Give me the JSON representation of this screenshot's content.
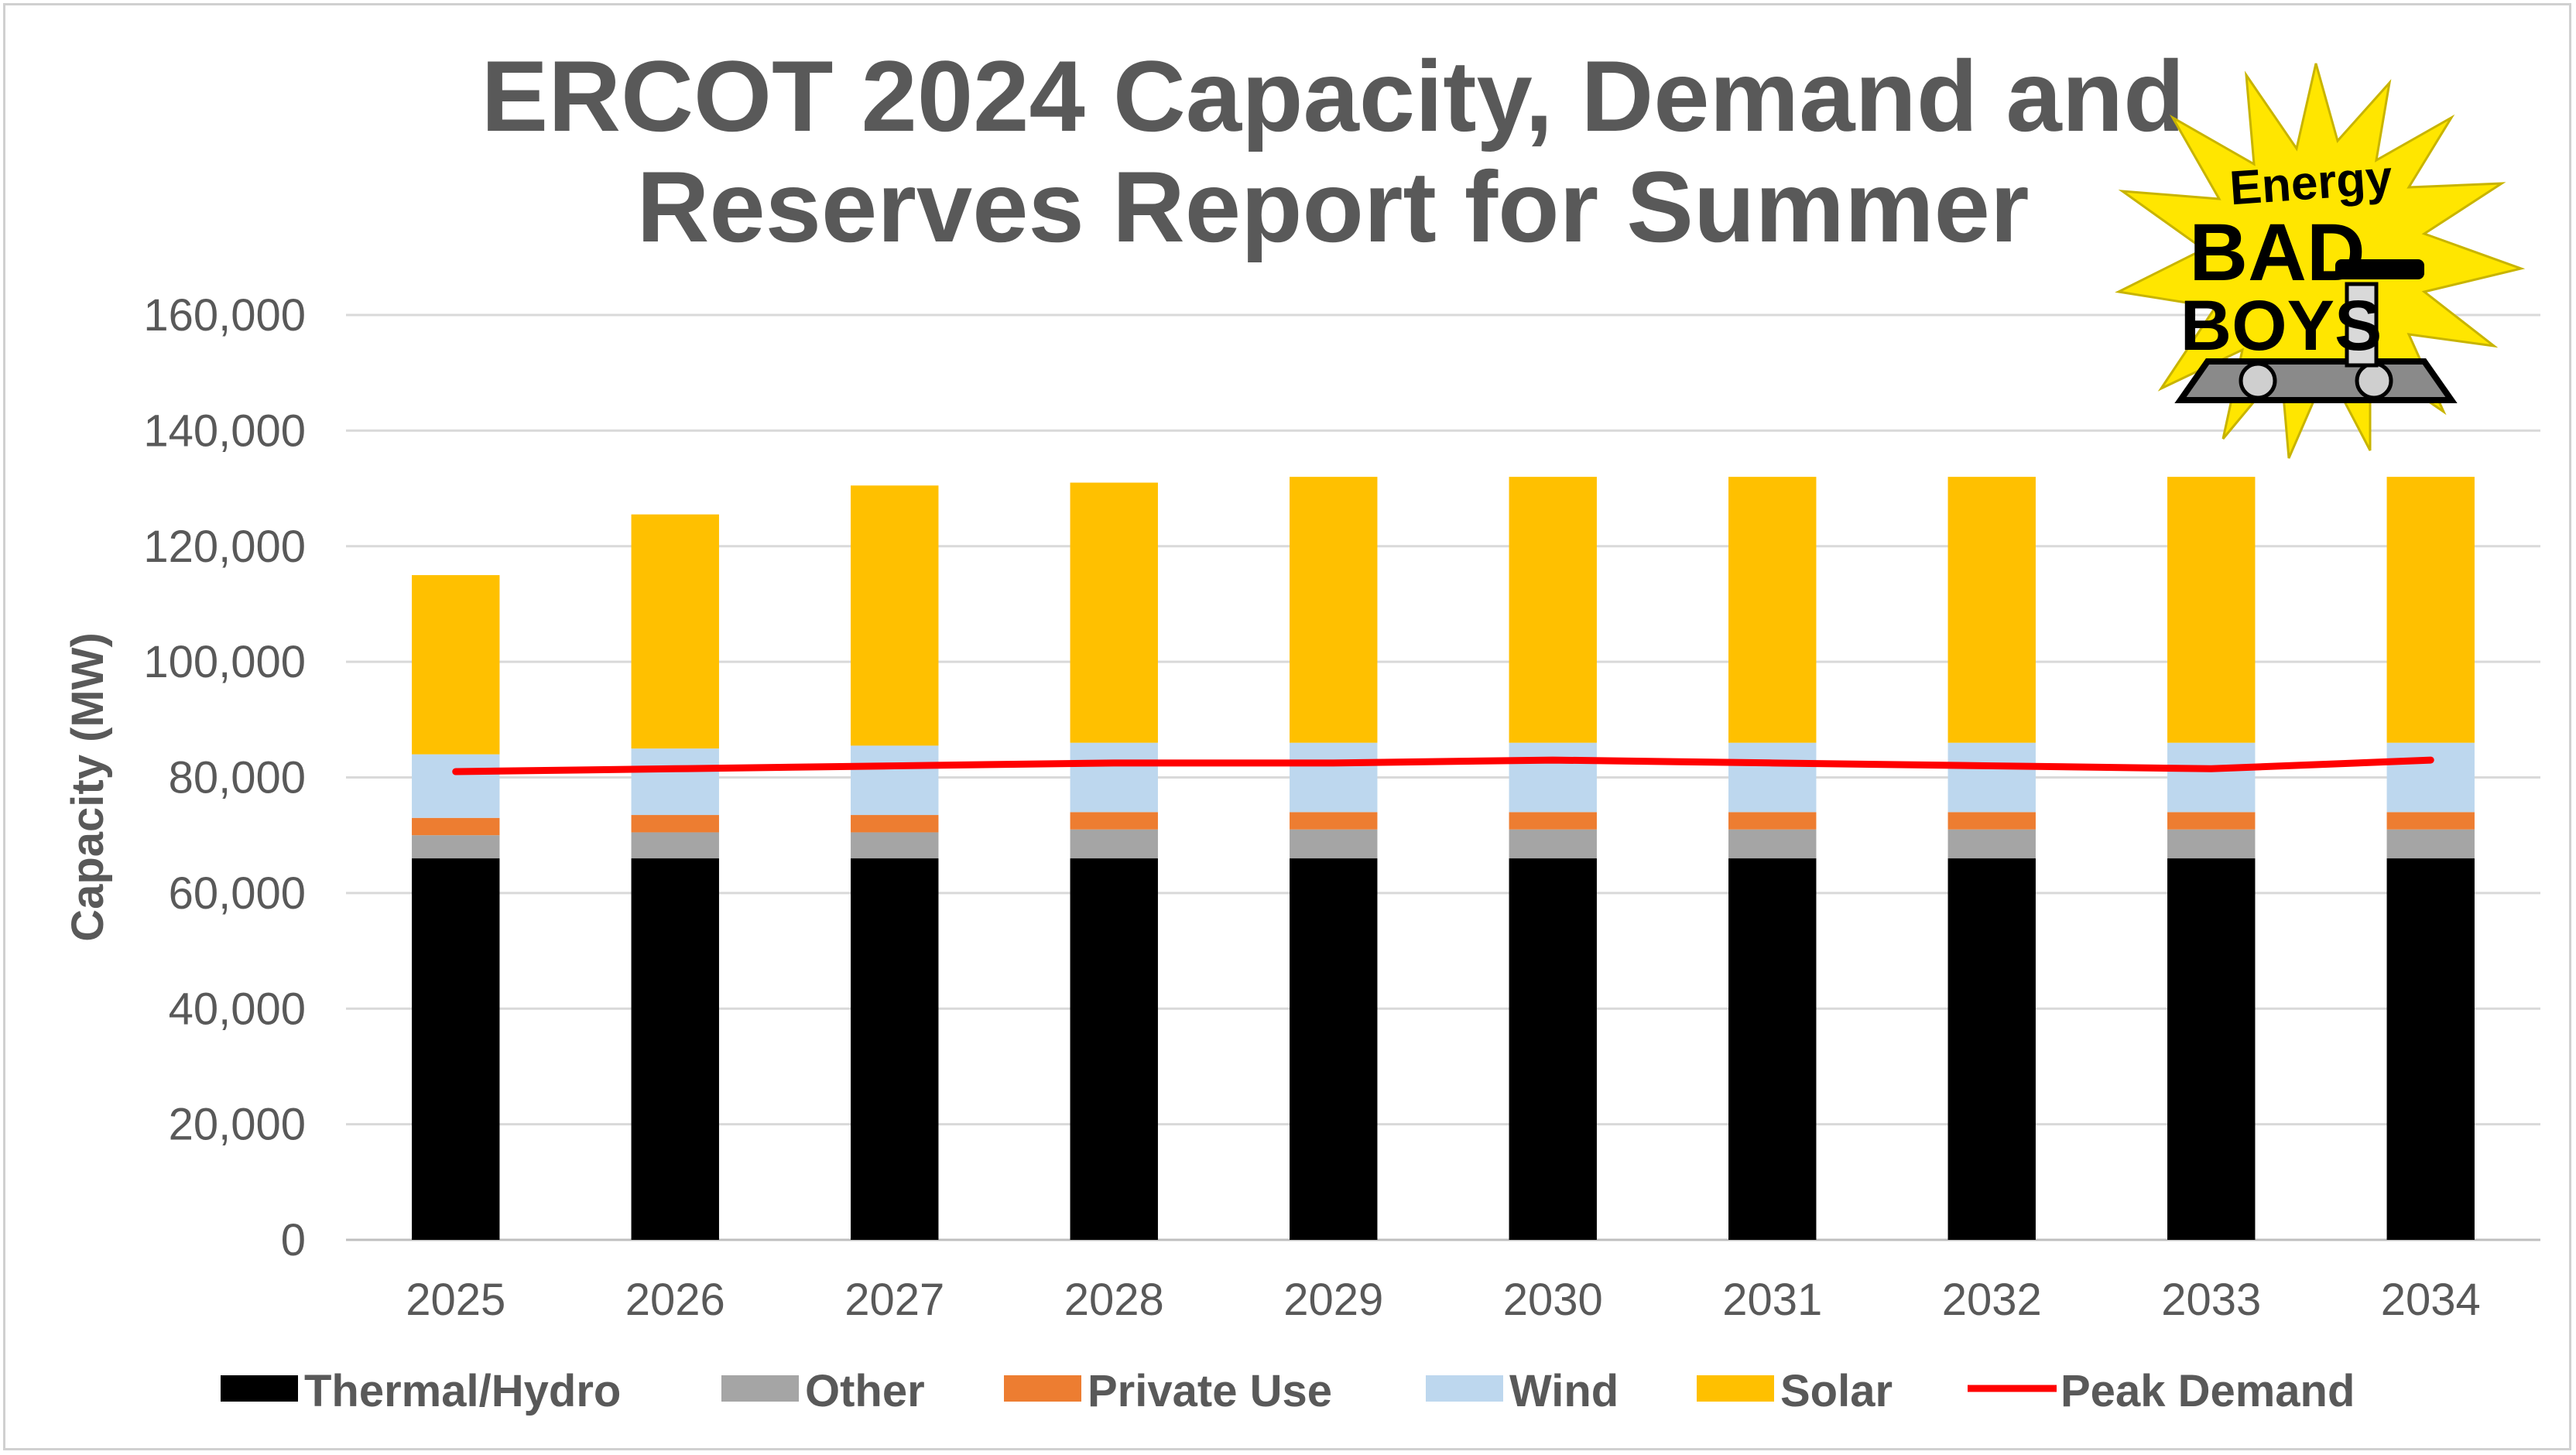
{
  "chart_data": {
    "type": "bar",
    "stacked": true,
    "title": [
      "ERCOT 2024 Capacity, Demand and",
      "Reserves Report for Summer"
    ],
    "xlabel": "",
    "ylabel": "Capacity (MW)",
    "ylim": [
      0,
      160000
    ],
    "yticks": [
      0,
      20000,
      40000,
      60000,
      80000,
      100000,
      120000,
      140000,
      160000
    ],
    "ytick_labels": [
      "0",
      "20,000",
      "40,000",
      "60,000",
      "80,000",
      "100,000",
      "120,000",
      "140,000",
      "160,000"
    ],
    "grid": true,
    "legend_position": "bottom",
    "categories": [
      "2025",
      "2026",
      "2027",
      "2028",
      "2029",
      "2030",
      "2031",
      "2032",
      "2033",
      "2034"
    ],
    "series": [
      {
        "name": "Thermal/Hydro",
        "color": "#000000",
        "kind": "bar",
        "values": [
          66000,
          66000,
          66000,
          66000,
          66000,
          66000,
          66000,
          66000,
          66000,
          66000
        ]
      },
      {
        "name": "Other",
        "color": "#a5a5a5",
        "kind": "bar",
        "values": [
          4000,
          4500,
          4500,
          5000,
          5000,
          5000,
          5000,
          5000,
          5000,
          5000
        ]
      },
      {
        "name": "Private Use",
        "color": "#ed7d31",
        "kind": "bar",
        "values": [
          3000,
          3000,
          3000,
          3000,
          3000,
          3000,
          3000,
          3000,
          3000,
          3000
        ]
      },
      {
        "name": "Wind",
        "color": "#bdd7ee",
        "kind": "bar",
        "values": [
          11000,
          11500,
          12000,
          12000,
          12000,
          12000,
          12000,
          12000,
          12000,
          12000
        ]
      },
      {
        "name": "Solar",
        "color": "#ffc000",
        "kind": "bar",
        "values": [
          31000,
          40500,
          45000,
          45000,
          46000,
          46000,
          46000,
          46000,
          46000,
          46000
        ]
      },
      {
        "name": "Peak Demand",
        "color": "#ff0000",
        "kind": "line",
        "values": [
          81000,
          81500,
          82000,
          82500,
          82500,
          83000,
          82500,
          82000,
          81500,
          83000
        ]
      }
    ]
  },
  "logo": {
    "line1": "Energy",
    "line2": "BAD",
    "line3": "BOYS",
    "burst_color": "#ffe600"
  }
}
